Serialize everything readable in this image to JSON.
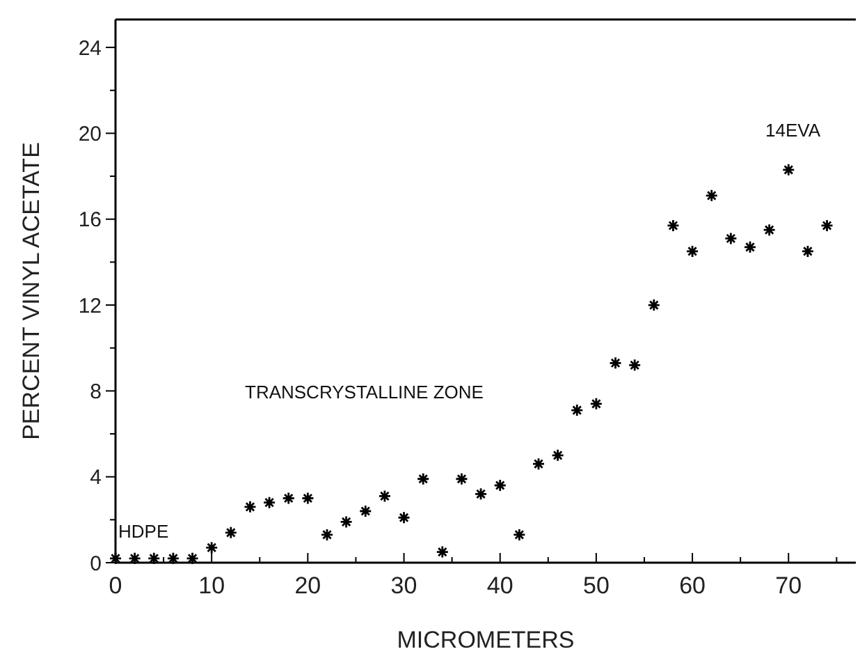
{
  "chart_data": {
    "type": "scatter",
    "xlabel": "MICROMETERS",
    "ylabel": "PERCENT VINYL ACETATE",
    "marker": "cross",
    "grid": false,
    "x": [
      0,
      2,
      4,
      6,
      8,
      10,
      12,
      14,
      16,
      18,
      20,
      22,
      24,
      26,
      28,
      30,
      32,
      34,
      36,
      38,
      40,
      42,
      44,
      46,
      48,
      50,
      52,
      54,
      56,
      58,
      60,
      62,
      64,
      66,
      68,
      70,
      72,
      74
    ],
    "series": [
      {
        "color": "#000000",
        "values": [
          0.2,
          0.2,
          0.2,
          0.2,
          0.2,
          0.7,
          1.4,
          2.6,
          2.8,
          3.0,
          3.0,
          1.3,
          1.9,
          2.4,
          3.1,
          2.1,
          3.9,
          0.5,
          3.9,
          3.2,
          3.6,
          1.3,
          4.6,
          5.0,
          7.1,
          7.4,
          9.3,
          9.2,
          12.0,
          15.7,
          14.5,
          17.1,
          15.1,
          14.7,
          15.5,
          18.3,
          14.5,
          15.7
        ]
      }
    ],
    "xlim": [
      0,
      77
    ],
    "ylim": [
      0,
      25.3
    ],
    "xticks": [
      0,
      {
        "value": 5,
        "label": null
      },
      10,
      {
        "value": 15,
        "label": null
      },
      20,
      {
        "value": 25,
        "label": null
      },
      30,
      {
        "value": 35,
        "label": null
      },
      40,
      {
        "value": 45,
        "label": null
      },
      50,
      {
        "value": 55,
        "label": null
      },
      60,
      {
        "value": 65,
        "label": null
      },
      70,
      {
        "value": 75,
        "label": null
      }
    ],
    "yticks": [
      0,
      {
        "value": 2,
        "label": null
      },
      4,
      {
        "value": 6,
        "label": null
      },
      8,
      {
        "value": 10,
        "label": null
      },
      12,
      {
        "value": 14,
        "label": null
      },
      16,
      {
        "value": 18,
        "label": null
      },
      20,
      {
        "value": 22,
        "label": null
      },
      24
    ],
    "annotations": [
      "HDPE",
      "TRANSCRYSTALLINE ZONE",
      "14EVA"
    ]
  }
}
